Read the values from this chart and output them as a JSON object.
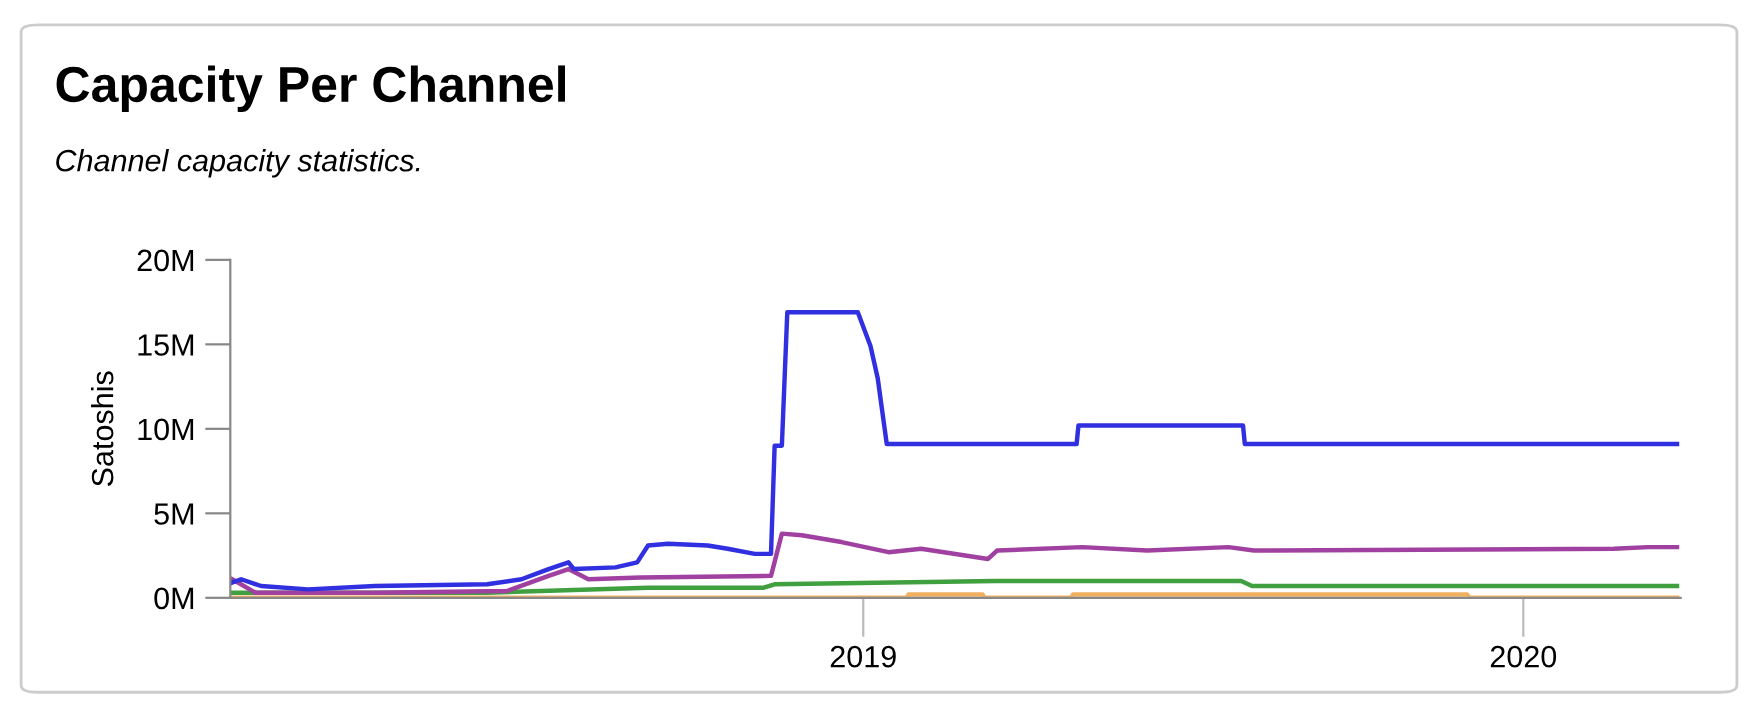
{
  "chart_data": {
    "type": "line",
    "title": "Capacity Per Channel",
    "subtitle": "Channel capacity statistics.",
    "ylabel": "Satoshis",
    "xlim": [
      "2018-01-16",
      "2020-03-28"
    ],
    "xticks": [
      {
        "value": "2019-01-01",
        "label": "2019"
      },
      {
        "value": "2020-01-01",
        "label": "2020"
      }
    ],
    "ylim": [
      0,
      20
    ],
    "yticks": [
      {
        "value": 0,
        "label": "0M"
      },
      {
        "value": 5,
        "label": "5M"
      },
      {
        "value": 10,
        "label": "10M"
      },
      {
        "value": 15,
        "label": "15M"
      },
      {
        "value": 20,
        "label": "20M"
      }
    ],
    "grid": false,
    "legend": false,
    "line_style": "solid",
    "marker": "none",
    "series": [
      {
        "color": "#f0b060",
        "x": [
          "2018-01-17",
          "2019-01-25",
          "2019-01-26",
          "2019-03-08",
          "2019-03-09",
          "2019-04-26",
          "2019-04-27",
          "2019-12-01",
          "2019-12-02",
          "2020-03-26"
        ],
        "values": [
          0.0,
          0.0,
          0.2,
          0.2,
          0.0,
          0.0,
          0.2,
          0.2,
          0.0,
          0.0
        ]
      },
      {
        "color": "#40a040",
        "x": [
          "2018-01-17",
          "2018-06-07",
          "2018-09-04",
          "2018-11-07",
          "2018-11-13",
          "2019-03-15",
          "2019-07-29",
          "2019-08-04",
          "2020-03-26"
        ],
        "values": [
          0.3,
          0.3,
          0.6,
          0.6,
          0.8,
          1.0,
          1.0,
          0.7,
          0.7
        ]
      },
      {
        "color": "#a040a0",
        "x": [
          "2018-01-17",
          "2018-01-30",
          "2018-04-06",
          "2018-06-18",
          "2018-07-11",
          "2018-07-22",
          "2018-08-02",
          "2018-08-31",
          "2018-11-11",
          "2018-11-17",
          "2018-11-28",
          "2018-12-20",
          "2019-01-15",
          "2019-02-02",
          "2019-03-11",
          "2019-03-16",
          "2019-05-02",
          "2019-06-07",
          "2019-07-22",
          "2019-08-05",
          "2020-02-20",
          "2020-03-10",
          "2020-03-26"
        ],
        "values": [
          1.1,
          0.3,
          0.3,
          0.4,
          1.3,
          1.7,
          1.1,
          1.2,
          1.3,
          3.8,
          3.7,
          3.3,
          2.7,
          2.9,
          2.3,
          2.8,
          3.0,
          2.8,
          3.0,
          2.8,
          2.9,
          3.0,
          3.0
        ]
      },
      {
        "color": "#3030e0",
        "x": [
          "2018-01-17",
          "2018-01-22",
          "2018-02-02",
          "2018-02-28",
          "2018-04-06",
          "2018-06-07",
          "2018-06-26",
          "2018-07-11",
          "2018-07-22",
          "2018-07-25",
          "2018-08-17",
          "2018-08-29",
          "2018-09-04",
          "2018-09-15",
          "2018-10-07",
          "2018-10-18",
          "2018-11-02",
          "2018-11-11",
          "2018-11-13",
          "2018-11-17",
          "2018-11-20",
          "2018-12-29",
          "2019-01-05",
          "2019-01-09",
          "2019-01-14",
          "2019-04-29",
          "2019-04-30",
          "2019-07-30",
          "2019-07-31",
          "2020-03-26"
        ],
        "values": [
          0.9,
          1.1,
          0.7,
          0.5,
          0.7,
          0.8,
          1.1,
          1.7,
          2.1,
          1.7,
          1.8,
          2.1,
          3.1,
          3.2,
          3.1,
          2.9,
          2.6,
          2.6,
          9.0,
          9.0,
          16.9,
          16.9,
          14.9,
          13.0,
          9.1,
          9.1,
          10.2,
          10.2,
          9.1,
          9.1
        ]
      }
    ]
  }
}
